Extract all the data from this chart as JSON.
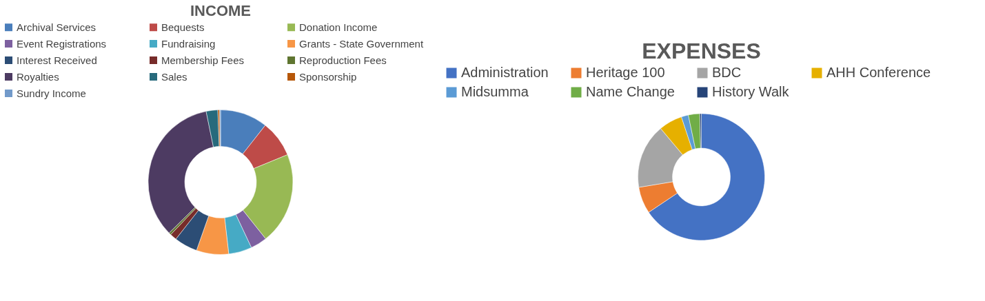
{
  "chart_data": [
    {
      "type": "donut",
      "title": "INCOME",
      "legend": "top",
      "categories": [
        "Archival Services",
        "Bequests",
        "Donation Income",
        "Event Registrations",
        "Fundraising",
        "Grants - State Government",
        "Interest Received",
        "Membership Fees",
        "Reproduction Fees",
        "Royalties",
        "Sales",
        "Sponsorship",
        "Sundry Income"
      ],
      "values": [
        10.6,
        8.2,
        20.5,
        3.7,
        5.2,
        7.2,
        5.2,
        1.5,
        0.5,
        34.2,
        2.6,
        0.4,
        0.2
      ],
      "colors": [
        "#4a7ebb",
        "#be4b48",
        "#98b954",
        "#7d60a0",
        "#46aac5",
        "#f79646",
        "#2c4d75",
        "#772c2a",
        "#5f7530",
        "#4d3b62",
        "#276a7c",
        "#b65708",
        "#729aca"
      ]
    },
    {
      "type": "donut",
      "title": "EXPENSES",
      "legend": "top",
      "categories": [
        "Administration",
        "Heritage 100",
        "BDC",
        "AHH Conference",
        "Midsumma",
        "Name Change",
        "History Walk"
      ],
      "values": [
        65.6,
        6.8,
        16.5,
        6.0,
        1.8,
        2.9,
        0.4
      ],
      "colors": [
        "#4472c4",
        "#ed7d31",
        "#a5a5a5",
        "#e6b000",
        "#5b9bd5",
        "#70ad47",
        "#264478"
      ]
    }
  ]
}
